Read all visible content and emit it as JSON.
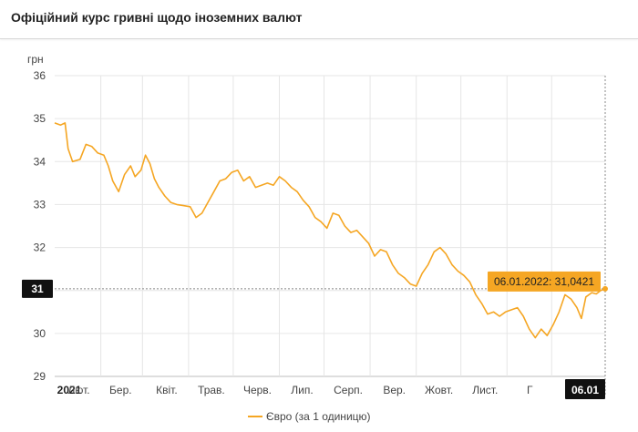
{
  "header": {
    "title": "Офіційний курс гривні щодо іноземних валют"
  },
  "chart_data": {
    "type": "line",
    "title": "Офіційний курс гривні щодо іноземних валют",
    "ylabel": "грн",
    "ylim": [
      29,
      36
    ],
    "yticks": [
      29,
      30,
      31,
      32,
      33,
      34,
      35,
      36
    ],
    "x_start": "2021-01-01",
    "x_end": "2022-01-06",
    "x_tick_labels": [
      {
        "label": "2021",
        "date": "2021-01-01",
        "bold": true
      },
      {
        "label": "Лют.",
        "date": "2021-02-01"
      },
      {
        "label": "Бер.",
        "date": "2021-03-01"
      },
      {
        "label": "Квіт.",
        "date": "2021-04-01"
      },
      {
        "label": "Трав.",
        "date": "2021-05-01"
      },
      {
        "label": "Черв.",
        "date": "2021-06-01"
      },
      {
        "label": "Лип.",
        "date": "2021-07-01"
      },
      {
        "label": "Серп.",
        "date": "2021-08-01"
      },
      {
        "label": "Вер.",
        "date": "2021-09-01"
      },
      {
        "label": "Жовт.",
        "date": "2021-10-01"
      },
      {
        "label": "Лист.",
        "date": "2021-11-01"
      },
      {
        "label": "Г",
        "date": "2021-12-01"
      }
    ],
    "crosshair": {
      "x_label": "06.01",
      "y_label": "31",
      "tooltip": "06.01.2022: 31,0421"
    },
    "grid": true,
    "legend_position": "bottom",
    "series": [
      {
        "name": "Євро (за 1 одиницю)",
        "color": "#f5a623",
        "points": [
          [
            "2021-01-01",
            34.9
          ],
          [
            "2021-01-05",
            34.85
          ],
          [
            "2021-01-08",
            34.9
          ],
          [
            "2021-01-10",
            34.3
          ],
          [
            "2021-01-13",
            34.0
          ],
          [
            "2021-01-18",
            34.05
          ],
          [
            "2021-01-22",
            34.4
          ],
          [
            "2021-01-26",
            34.35
          ],
          [
            "2021-01-30",
            34.2
          ],
          [
            "2021-02-03",
            34.15
          ],
          [
            "2021-02-06",
            33.9
          ],
          [
            "2021-02-09",
            33.55
          ],
          [
            "2021-02-13",
            33.3
          ],
          [
            "2021-02-17",
            33.7
          ],
          [
            "2021-02-21",
            33.9
          ],
          [
            "2021-02-24",
            33.65
          ],
          [
            "2021-02-28",
            33.8
          ],
          [
            "2021-03-03",
            34.15
          ],
          [
            "2021-03-06",
            33.95
          ],
          [
            "2021-03-09",
            33.6
          ],
          [
            "2021-03-12",
            33.4
          ],
          [
            "2021-03-16",
            33.2
          ],
          [
            "2021-03-20",
            33.05
          ],
          [
            "2021-03-24",
            33.0
          ],
          [
            "2021-03-28",
            32.98
          ],
          [
            "2021-04-02",
            32.95
          ],
          [
            "2021-04-06",
            32.7
          ],
          [
            "2021-04-10",
            32.8
          ],
          [
            "2021-04-14",
            33.05
          ],
          [
            "2021-04-18",
            33.3
          ],
          [
            "2021-04-22",
            33.55
          ],
          [
            "2021-04-26",
            33.6
          ],
          [
            "2021-04-30",
            33.75
          ],
          [
            "2021-05-04",
            33.8
          ],
          [
            "2021-05-08",
            33.55
          ],
          [
            "2021-05-12",
            33.65
          ],
          [
            "2021-05-16",
            33.4
          ],
          [
            "2021-05-20",
            33.45
          ],
          [
            "2021-05-24",
            33.5
          ],
          [
            "2021-05-28",
            33.45
          ],
          [
            "2021-06-01",
            33.65
          ],
          [
            "2021-06-05",
            33.55
          ],
          [
            "2021-06-09",
            33.4
          ],
          [
            "2021-06-13",
            33.3
          ],
          [
            "2021-06-17",
            33.1
          ],
          [
            "2021-06-21",
            32.95
          ],
          [
            "2021-06-25",
            32.7
          ],
          [
            "2021-06-29",
            32.6
          ],
          [
            "2021-07-03",
            32.45
          ],
          [
            "2021-07-07",
            32.8
          ],
          [
            "2021-07-11",
            32.75
          ],
          [
            "2021-07-15",
            32.5
          ],
          [
            "2021-07-19",
            32.35
          ],
          [
            "2021-07-23",
            32.4
          ],
          [
            "2021-07-27",
            32.25
          ],
          [
            "2021-07-31",
            32.1
          ],
          [
            "2021-08-04",
            31.8
          ],
          [
            "2021-08-08",
            31.95
          ],
          [
            "2021-08-12",
            31.9
          ],
          [
            "2021-08-16",
            31.6
          ],
          [
            "2021-08-20",
            31.4
          ],
          [
            "2021-08-24",
            31.3
          ],
          [
            "2021-08-28",
            31.15
          ],
          [
            "2021-09-01",
            31.1
          ],
          [
            "2021-09-05",
            31.4
          ],
          [
            "2021-09-09",
            31.6
          ],
          [
            "2021-09-13",
            31.9
          ],
          [
            "2021-09-17",
            32.0
          ],
          [
            "2021-09-21",
            31.85
          ],
          [
            "2021-09-25",
            31.6
          ],
          [
            "2021-09-29",
            31.45
          ],
          [
            "2021-10-03",
            31.35
          ],
          [
            "2021-10-07",
            31.2
          ],
          [
            "2021-10-11",
            30.9
          ],
          [
            "2021-10-15",
            30.7
          ],
          [
            "2021-10-19",
            30.45
          ],
          [
            "2021-10-23",
            30.5
          ],
          [
            "2021-10-27",
            30.4
          ],
          [
            "2021-10-31",
            30.5
          ],
          [
            "2021-11-04",
            30.55
          ],
          [
            "2021-11-08",
            30.6
          ],
          [
            "2021-11-12",
            30.4
          ],
          [
            "2021-11-16",
            30.1
          ],
          [
            "2021-11-20",
            29.9
          ],
          [
            "2021-11-24",
            30.1
          ],
          [
            "2021-11-28",
            29.95
          ],
          [
            "2021-12-02",
            30.2
          ],
          [
            "2021-12-06",
            30.5
          ],
          [
            "2021-12-10",
            30.9
          ],
          [
            "2021-12-14",
            30.8
          ],
          [
            "2021-12-18",
            30.6
          ],
          [
            "2021-12-21",
            30.35
          ],
          [
            "2021-12-24",
            30.85
          ],
          [
            "2021-12-28",
            30.95
          ],
          [
            "2021-12-31",
            30.92
          ],
          [
            "2022-01-03",
            31.0
          ],
          [
            "2022-01-06",
            31.04
          ]
        ]
      }
    ]
  }
}
